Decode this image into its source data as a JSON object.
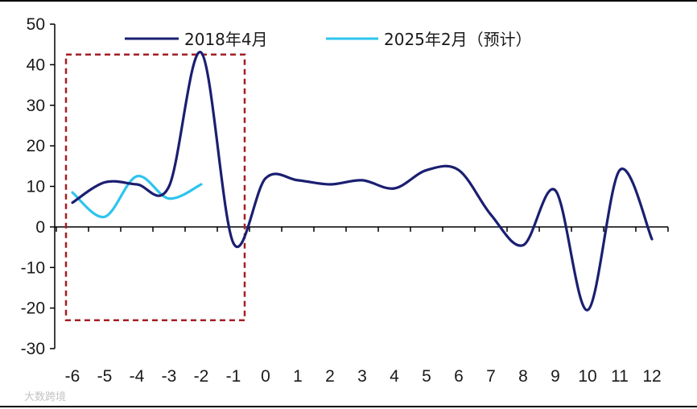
{
  "chart_data": {
    "type": "line",
    "title": "",
    "xlabel": "",
    "ylabel": "",
    "x": [
      -6,
      -5,
      -4,
      -3,
      -2,
      -1,
      0,
      1,
      2,
      3,
      4,
      5,
      6,
      7,
      8,
      9,
      10,
      11,
      12
    ],
    "x_ticks": [
      "-6",
      "-5",
      "-4",
      "-3",
      "-2",
      "-1",
      "0",
      "1",
      "2",
      "3",
      "4",
      "5",
      "6",
      "7",
      "8",
      "9",
      "10",
      "11",
      "12"
    ],
    "ylim": [
      -30,
      50
    ],
    "y_ticks": [
      "-30",
      "-20",
      "-10",
      "0",
      "10",
      "20",
      "30",
      "40",
      "50"
    ],
    "grid": false,
    "legend_position": "top",
    "series": [
      {
        "name": "2018年4月",
        "color": "#1a1f71",
        "values": [
          6,
          11,
          10.5,
          10,
          43,
          -4,
          12,
          11.5,
          10.5,
          11.5,
          9.5,
          14,
          14,
          3,
          -4.5,
          9,
          -20.5,
          14,
          -3
        ]
      },
      {
        "name": "2025年2月（预计）",
        "color": "#2ec4ee",
        "values": [
          8.5,
          2.5,
          12.5,
          7,
          10.5,
          null,
          null,
          null,
          null,
          null,
          null,
          null,
          null,
          null,
          null,
          null,
          null,
          null,
          null
        ]
      }
    ],
    "highlight_box": {
      "x_range": [
        -6.2,
        -0.65
      ],
      "y_range": [
        -23,
        42.5
      ],
      "color": "#a31f24"
    }
  },
  "watermark": "大数跨境"
}
